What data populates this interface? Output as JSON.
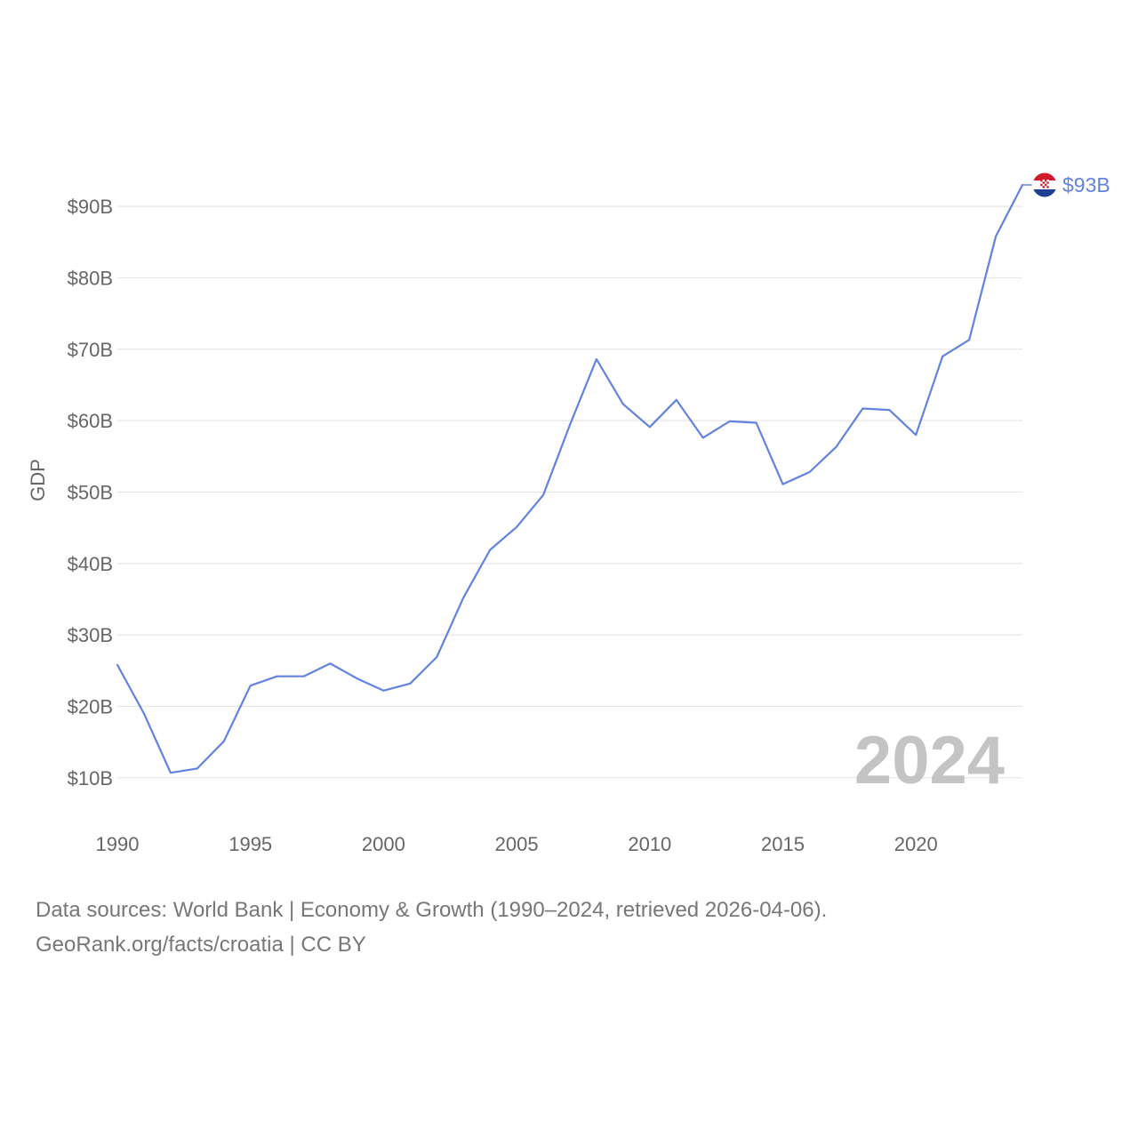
{
  "chart_data": {
    "type": "line",
    "title": "",
    "xlabel": "",
    "ylabel": "GDP",
    "xlim": [
      1990,
      2024
    ],
    "ylim": [
      4,
      93
    ],
    "x_ticks": [
      1990,
      1995,
      2000,
      2005,
      2010,
      2015,
      2020
    ],
    "x_tick_labels": [
      "1990",
      "1995",
      "2000",
      "2005",
      "2010",
      "2015",
      "2020"
    ],
    "y_ticks": [
      10,
      20,
      30,
      40,
      50,
      60,
      70,
      80,
      90
    ],
    "y_tick_labels": [
      "$10B",
      "$20B",
      "$30B",
      "$40B",
      "$50B",
      "$60B",
      "$70B",
      "$80B",
      "$90B"
    ],
    "grid": true,
    "series": [
      {
        "name": "Croatia",
        "color": "#6282e0",
        "x": [
          1990,
          1991,
          1992,
          1993,
          1994,
          1995,
          1996,
          1997,
          1998,
          1999,
          2000,
          2001,
          2002,
          2003,
          2004,
          2005,
          2006,
          2007,
          2008,
          2009,
          2010,
          2011,
          2012,
          2013,
          2014,
          2015,
          2016,
          2017,
          2018,
          2019,
          2020,
          2021,
          2022,
          2023,
          2024
        ],
        "values": [
          25.8,
          19.0,
          10.7,
          11.3,
          15.1,
          22.9,
          24.2,
          24.2,
          26.0,
          23.9,
          22.2,
          23.2,
          26.9,
          35.2,
          41.9,
          45.1,
          49.6,
          59.4,
          68.6,
          62.3,
          59.1,
          62.9,
          57.6,
          59.9,
          59.7,
          51.1,
          52.8,
          56.3,
          61.7,
          61.5,
          58.0,
          69.0,
          71.3,
          85.8,
          93.0
        ]
      }
    ],
    "end_label": "$93B",
    "year_label": "2024",
    "legend": "none"
  },
  "footer": {
    "line1": "Data sources: World Bank | Economy & Growth (1990–2024, retrieved 2026-04-06).",
    "line2": "GeoRank.org/facts/croatia | CC BY"
  },
  "colors": {
    "line": "#6282e0",
    "grid": "#e6e6e6",
    "tick_text": "#666666",
    "watermark": "#c4c4c4",
    "flag_red": "#d21a2c",
    "flag_white": "#ffffff",
    "flag_blue": "#1d3f95"
  }
}
